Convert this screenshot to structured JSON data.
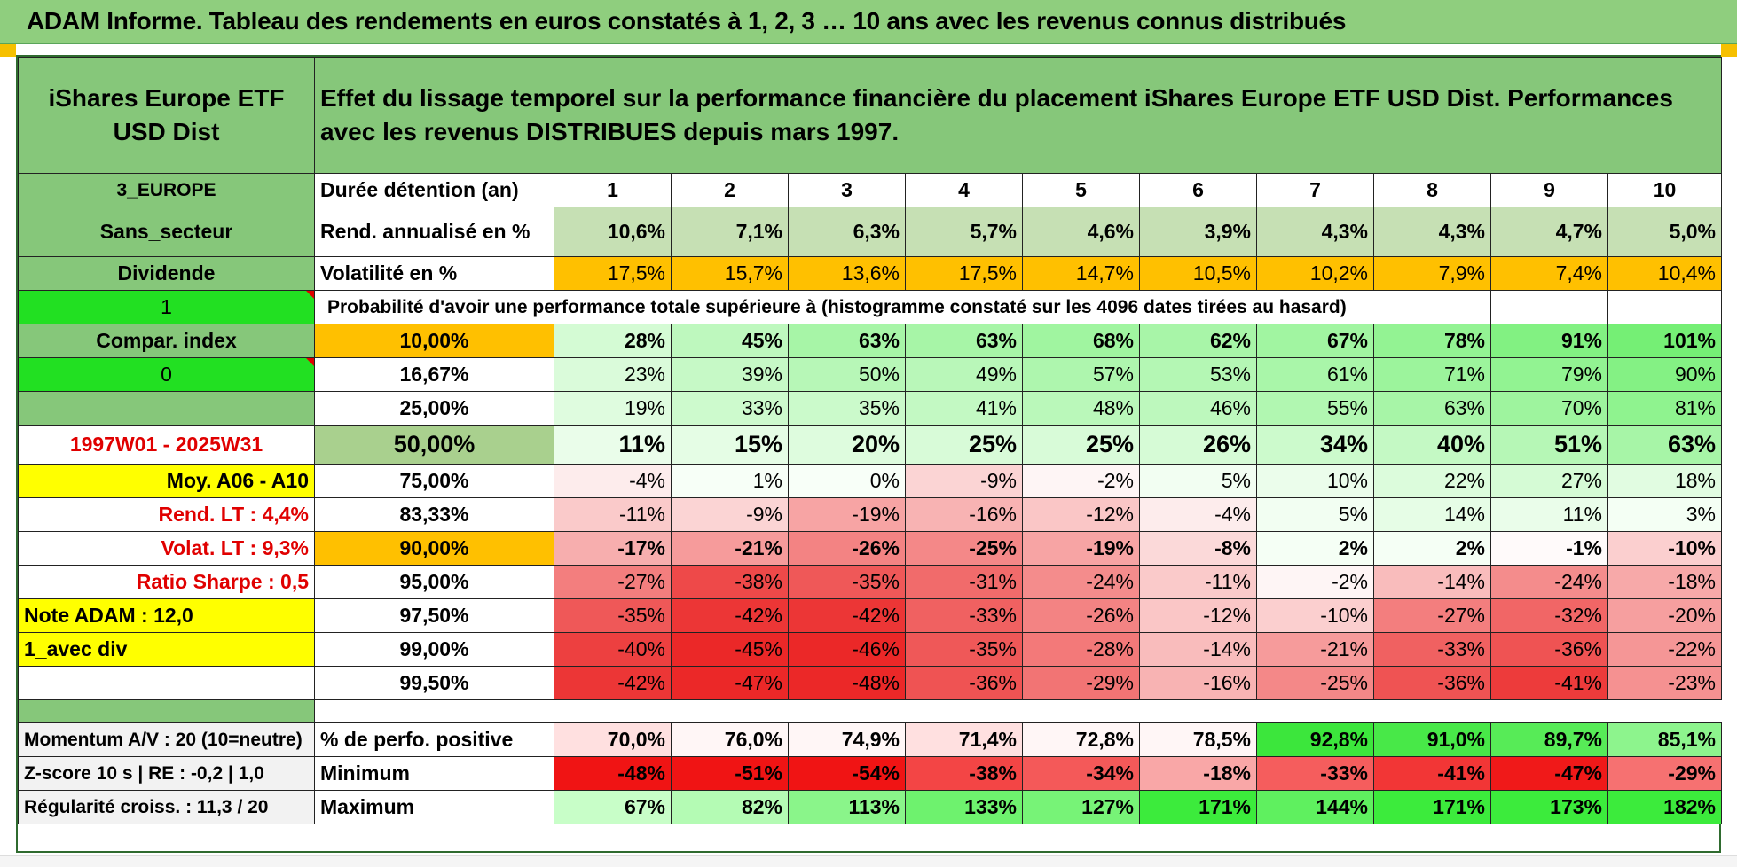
{
  "title": "ADAM Informe. Tableau des rendements en euros constatés à 1, 2, 3 … 10 ans avec les revenus connus distribués",
  "left": {
    "fund_name": "iShares Europe ETF USD Dist",
    "region": "3_EUROPE",
    "sector": "Sans_secteur",
    "income": "Dividende",
    "flag1": "1",
    "compar": "Compar. index",
    "flag0": "0",
    "period": "1997W01 - 2025W31",
    "moy": "Moy. A06 - A10",
    "rend_lt": "Rend. LT :    4,4%",
    "volat_lt": "Volat. LT :    9,3%",
    "sharpe": "Ratio Sharpe :     0,5",
    "note": "Note ADAM : 12,0",
    "avec_div": "1_avec div",
    "momentum": "Momentum A/V : 20 (10=neutre)",
    "zscore": "Z-score 10 s | RE : -0,2 | 1,0",
    "regularite": "Régularité croiss. : 11,3 / 20"
  },
  "header_text": "Effet du lissage temporel sur la performance financière du placement iShares Europe ETF USD Dist. Performances avec les revenus DISTRIBUES depuis mars 1997.",
  "duration_label": "Durée détention (an)",
  "years": [
    "1",
    "2",
    "3",
    "4",
    "5",
    "6",
    "7",
    "8",
    "9",
    "10"
  ],
  "rend_label": "Rend. annualisé en %",
  "rend": [
    "10,6%",
    "7,1%",
    "6,3%",
    "5,7%",
    "4,6%",
    "3,9%",
    "4,3%",
    "4,3%",
    "4,7%",
    "5,0%"
  ],
  "vol_label": "Volatilité en %",
  "vol": [
    "17,5%",
    "15,7%",
    "13,6%",
    "17,5%",
    "14,7%",
    "10,5%",
    "10,2%",
    "7,9%",
    "7,4%",
    "10,4%"
  ],
  "prob_label": "Probabilité d'avoir une performance totale supérieure à (histogramme constaté sur les 4096 dates tirées au hasard)",
  "quantiles": [
    {
      "label": "10,00%",
      "values": [
        "28%",
        "45%",
        "63%",
        "63%",
        "68%",
        "62%",
        "67%",
        "78%",
        "91%",
        "101%"
      ]
    },
    {
      "label": "16,67%",
      "values": [
        "23%",
        "39%",
        "50%",
        "49%",
        "57%",
        "53%",
        "61%",
        "71%",
        "79%",
        "90%"
      ]
    },
    {
      "label": "25,00%",
      "values": [
        "19%",
        "33%",
        "35%",
        "41%",
        "48%",
        "46%",
        "55%",
        "63%",
        "70%",
        "81%"
      ]
    },
    {
      "label": "50,00%",
      "values": [
        "11%",
        "15%",
        "20%",
        "25%",
        "25%",
        "26%",
        "34%",
        "40%",
        "51%",
        "63%"
      ]
    },
    {
      "label": "75,00%",
      "values": [
        "-4%",
        "1%",
        "0%",
        "-9%",
        "-2%",
        "5%",
        "10%",
        "22%",
        "27%",
        "18%"
      ]
    },
    {
      "label": "83,33%",
      "values": [
        "-11%",
        "-9%",
        "-19%",
        "-16%",
        "-12%",
        "-4%",
        "5%",
        "14%",
        "11%",
        "3%"
      ]
    },
    {
      "label": "90,00%",
      "values": [
        "-17%",
        "-21%",
        "-26%",
        "-25%",
        "-19%",
        "-8%",
        "2%",
        "2%",
        "-1%",
        "-10%"
      ]
    },
    {
      "label": "95,00%",
      "values": [
        "-27%",
        "-38%",
        "-35%",
        "-31%",
        "-24%",
        "-11%",
        "-2%",
        "-14%",
        "-24%",
        "-18%"
      ]
    },
    {
      "label": "97,50%",
      "values": [
        "-35%",
        "-42%",
        "-42%",
        "-33%",
        "-26%",
        "-12%",
        "-10%",
        "-27%",
        "-32%",
        "-20%"
      ]
    },
    {
      "label": "99,00%",
      "values": [
        "-40%",
        "-45%",
        "-46%",
        "-35%",
        "-28%",
        "-14%",
        "-21%",
        "-33%",
        "-36%",
        "-22%"
      ]
    },
    {
      "label": "99,50%",
      "values": [
        "-42%",
        "-47%",
        "-48%",
        "-36%",
        "-29%",
        "-16%",
        "-25%",
        "-36%",
        "-41%",
        "-23%"
      ]
    }
  ],
  "pos_label": "% de perfo. positive",
  "pos": [
    "70,0%",
    "76,0%",
    "74,9%",
    "71,4%",
    "72,8%",
    "78,5%",
    "92,8%",
    "91,0%",
    "89,7%",
    "85,1%"
  ],
  "min_label": "Minimum",
  "min": [
    "-48%",
    "-51%",
    "-54%",
    "-38%",
    "-34%",
    "-18%",
    "-33%",
    "-41%",
    "-47%",
    "-29%"
  ],
  "max_label": "Maximum",
  "max": [
    "67%",
    "82%",
    "113%",
    "133%",
    "127%",
    "171%",
    "144%",
    "171%",
    "173%",
    "182%"
  ],
  "colors": {
    "title_green": "#8fce7e",
    "cell_green": "#86c77a",
    "orange": "#ffc000",
    "yellow": "#ffff00",
    "bright_green": "#22e022",
    "red_text": "#e00000"
  }
}
